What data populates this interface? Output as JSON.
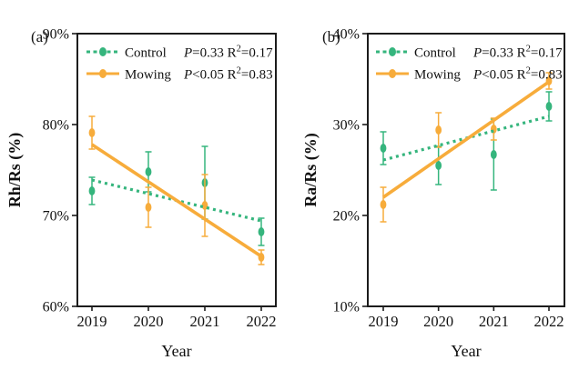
{
  "figure": {
    "xlabel": "Year",
    "years": [
      "2019",
      "2020",
      "2021",
      "2022"
    ],
    "colors": {
      "control": "#35b57d",
      "mowing": "#f7ac3b",
      "axis": "#1c1c1c",
      "text": "#111111",
      "background": "#ffffff"
    },
    "legend": [
      {
        "series": "control",
        "label": "Control",
        "p": "P=0.33",
        "r2": "R2=0.17"
      },
      {
        "series": "mowing",
        "label": "Mowing",
        "p": "P<0.05",
        "r2": "R2=0.83"
      }
    ]
  },
  "chart_data": [
    {
      "type": "scatter",
      "panel_label": "(a)",
      "ylabel": "Rh/Rs (%)",
      "xlabel": "Year",
      "categories": [
        "2019",
        "2020",
        "2021",
        "2022"
      ],
      "ylim": [
        60,
        90
      ],
      "yticks": [
        {
          "value": 90,
          "label": "90%"
        },
        {
          "value": 80,
          "label": "80%"
        },
        {
          "value": 70,
          "label": "70%"
        },
        {
          "value": 60,
          "label": "60%"
        }
      ],
      "grid": false,
      "legend_position": "top-left",
      "series": [
        {
          "name": "Control",
          "key": "control",
          "marker": "ellipse",
          "line": "dashed",
          "values": [
            72.7,
            74.8,
            73.6,
            68.2
          ],
          "errors": [
            1.5,
            2.2,
            4.0,
            1.5
          ],
          "trend": {
            "x": [
              "2019",
              "2022"
            ],
            "y": [
              73.9,
              69.4
            ]
          },
          "stats": {
            "p": "P=0.33",
            "r2": "R2=0.17"
          }
        },
        {
          "name": "Mowing",
          "key": "mowing",
          "marker": "ellipse",
          "line": "solid",
          "values": [
            79.1,
            70.9,
            71.1,
            65.4
          ],
          "errors": [
            1.8,
            2.2,
            3.4,
            0.8
          ],
          "trend": {
            "x": [
              "2019",
              "2022"
            ],
            "y": [
              77.8,
              65.5
            ]
          },
          "stats": {
            "p": "P<0.05",
            "r2": "R2=0.83"
          }
        }
      ]
    },
    {
      "type": "scatter",
      "panel_label": "(b)",
      "ylabel": "Ra/Rs (%)",
      "xlabel": "Year",
      "categories": [
        "2019",
        "2020",
        "2021",
        "2022"
      ],
      "ylim": [
        10,
        40
      ],
      "yticks": [
        {
          "value": 40,
          "label": "40%"
        },
        {
          "value": 30,
          "label": "30%"
        },
        {
          "value": 20,
          "label": "20%"
        },
        {
          "value": 10,
          "label": "10%"
        }
      ],
      "grid": false,
      "legend_position": "top-left",
      "series": [
        {
          "name": "Control",
          "key": "control",
          "marker": "ellipse",
          "line": "dashed",
          "values": [
            27.4,
            25.5,
            26.7,
            32.0
          ],
          "errors": [
            1.8,
            2.1,
            3.9,
            1.6
          ],
          "trend": {
            "x": [
              "2019",
              "2022"
            ],
            "y": [
              26.1,
              30.9
            ]
          },
          "stats": {
            "p": "P=0.33",
            "r2": "R2=0.17"
          }
        },
        {
          "name": "Mowing",
          "key": "mowing",
          "marker": "ellipse",
          "line": "solid",
          "values": [
            21.2,
            29.4,
            29.5,
            34.8
          ],
          "errors": [
            1.9,
            1.9,
            1.2,
            0.9
          ],
          "trend": {
            "x": [
              "2019",
              "2022"
            ],
            "y": [
              22.0,
              34.7
            ]
          },
          "stats": {
            "p": "P<0.05",
            "r2": "R2=0.83"
          }
        }
      ]
    }
  ]
}
